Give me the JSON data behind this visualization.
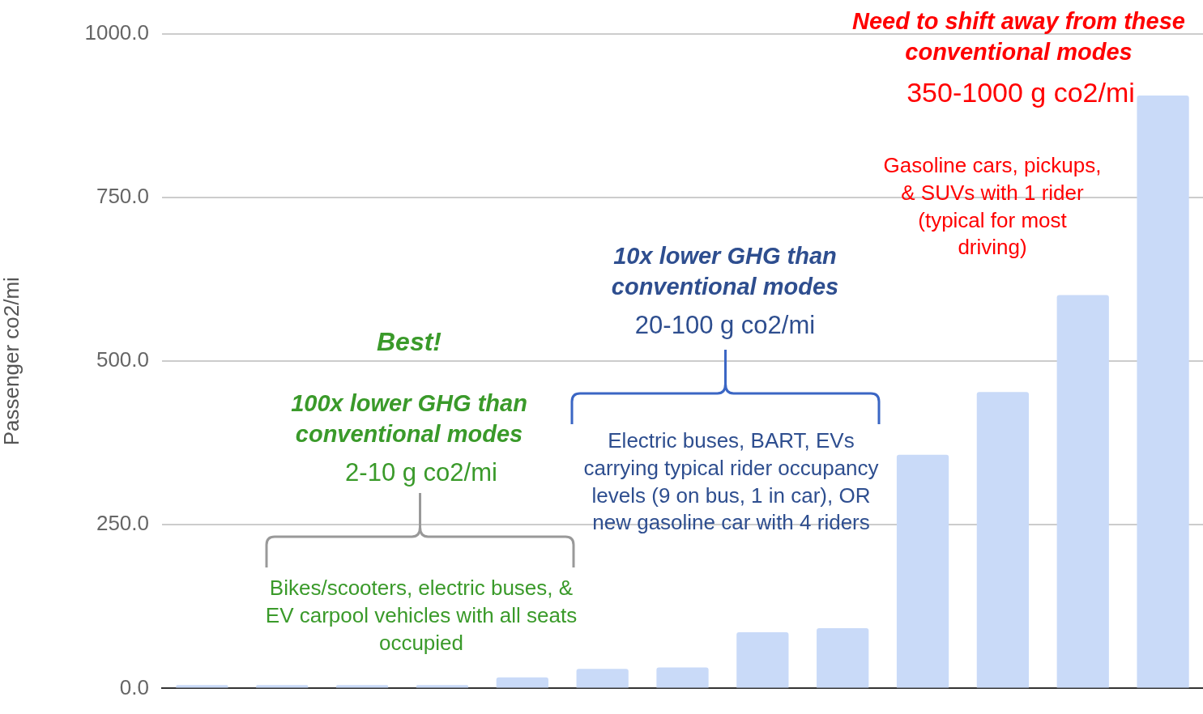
{
  "chart_data": {
    "type": "bar",
    "ylabel": "Passenger co2/mi",
    "categories": [
      null,
      null,
      null,
      null,
      null,
      null,
      null,
      null,
      null,
      null,
      null,
      null,
      null
    ],
    "values": [
      5,
      5,
      5,
      5,
      17,
      30,
      32,
      86,
      92,
      357,
      453,
      601,
      906
    ],
    "color": "#c9daf8",
    "ylim": [
      0,
      1000
    ],
    "yticks": [
      {
        "value": 0,
        "label": "0.0"
      },
      {
        "value": 250,
        "label": "250.0"
      },
      {
        "value": 500,
        "label": "500.0"
      },
      {
        "value": 750,
        "label": "750.0"
      },
      {
        "value": 1000,
        "label": "1000.0"
      }
    ],
    "grid": "y",
    "tick_labels": "y",
    "annotations": [
      "Need to shift away from these conventional modes",
      "350-1000 g co2/mi",
      "Gasoline cars, pickups, & SUVs with 1 rider (typical for most driving)",
      "10x lower GHG than conventional modes",
      "20-100 g co2/mi",
      "Electric buses, BART, EVs carrying typical rider occupancy levels (9 on bus, 1 in car), OR new gasoline car with 4 riders",
      "Best!",
      "100x lower GHG than conventional modes",
      "2-10 g co2/mi",
      "Bikes/scooters, electric buses, & EV carpool vehicles with all seats occupied"
    ]
  }
}
